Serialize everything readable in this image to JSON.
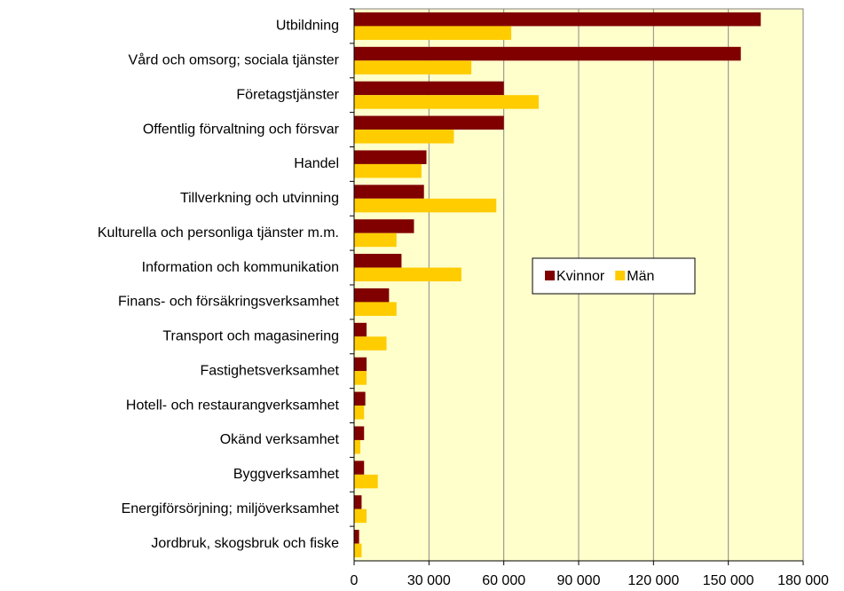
{
  "chart_data": {
    "type": "hbar",
    "categories": [
      "Utbildning",
      "Vård och omsorg; sociala tjänster",
      "Företagstjänster",
      "Offentlig förvaltning och försvar",
      "Handel",
      "Tillverkning och utvinning",
      "Kulturella och personliga tjänster m.m.",
      "Information och kommunikation",
      "Finans- och försäkringsverksamhet",
      "Transport och magasinering",
      "Fastighetsverksamhet",
      "Hotell- och restaurangverksamhet",
      "Okänd verksamhet",
      "Byggverksamhet",
      "Energiförsörjning; miljöverksamhet",
      "Jordbruk, skogsbruk och fiske"
    ],
    "series": [
      {
        "name": "Kvinnor",
        "color": "#800000",
        "values": [
          163000,
          155000,
          60000,
          60000,
          29000,
          28000,
          24000,
          19000,
          14000,
          5000,
          5000,
          4500,
          4000,
          4000,
          3000,
          2000
        ]
      },
      {
        "name": "Män",
        "color": "#ffcc00",
        "values": [
          63000,
          47000,
          74000,
          40000,
          27000,
          57000,
          17000,
          43000,
          17000,
          13000,
          5000,
          4000,
          2500,
          9500,
          5000,
          3000
        ]
      }
    ],
    "xlim": [
      0,
      180000
    ],
    "xticks": [
      0,
      {
        "value": 30000,
        "label": "30 000"
      },
      {
        "value": 60000,
        "label": "60 000"
      },
      {
        "value": 90000,
        "label": "90 000"
      },
      {
        "value": 120000,
        "label": "120 000"
      },
      {
        "value": 150000,
        "label": "150 000"
      },
      {
        "value": 180000,
        "label": "180 000"
      }
    ],
    "grid": true,
    "legend": "center-right",
    "background": "#ffffcc"
  }
}
